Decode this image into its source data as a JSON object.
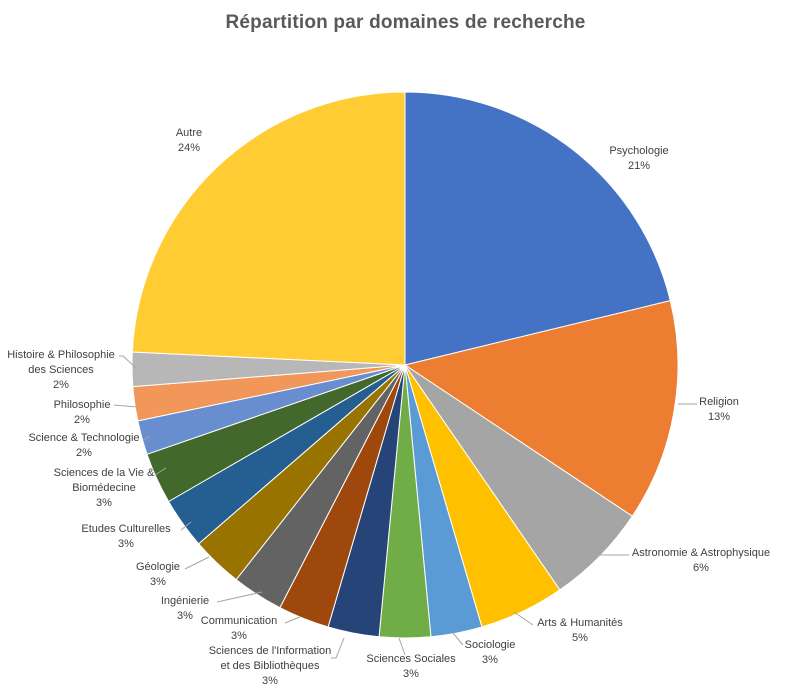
{
  "chart_data": {
    "type": "pie",
    "title": "Répartition  par domaines  de recherche",
    "slices": [
      {
        "name": "Psychologie",
        "label_lines": [
          "Psychologie"
        ],
        "percent": 21,
        "percent_label": "21%",
        "color": "#4472C4"
      },
      {
        "name": "Religion",
        "label_lines": [
          "Religion"
        ],
        "percent": 13,
        "percent_label": "13%",
        "color": "#ED7D31"
      },
      {
        "name": "Astronomie & Astrophysique",
        "label_lines": [
          "Astronomie & Astrophysique"
        ],
        "percent": 6,
        "percent_label": "6%",
        "color": "#A5A5A5"
      },
      {
        "name": "Arts & Humanités",
        "label_lines": [
          "Arts & Humanités"
        ],
        "percent": 5,
        "percent_label": "5%",
        "color": "#FFC000"
      },
      {
        "name": "Sociologie",
        "label_lines": [
          "Sociologie"
        ],
        "percent": 3,
        "percent_label": "3%",
        "color": "#5B9BD5"
      },
      {
        "name": "Sciences Sociales",
        "label_lines": [
          "Sciences Sociales"
        ],
        "percent": 3,
        "percent_label": "3%",
        "color": "#70AD47"
      },
      {
        "name": "Sciences de l'Information et des Bibliothèques",
        "label_lines": [
          "Sciences de l'Information",
          "et des Bibliothèques"
        ],
        "percent": 3,
        "percent_label": "3%",
        "color": "#264478"
      },
      {
        "name": "Communication",
        "label_lines": [
          "Communication"
        ],
        "percent": 3,
        "percent_label": "3%",
        "color": "#9E480E"
      },
      {
        "name": "Ingénierie",
        "label_lines": [
          "Ingénierie"
        ],
        "percent": 3,
        "percent_label": "3%",
        "color": "#636363"
      },
      {
        "name": "Géologie",
        "label_lines": [
          "Géologie"
        ],
        "percent": 3,
        "percent_label": "3%",
        "color": "#997300"
      },
      {
        "name": "Etudes Culturelles",
        "label_lines": [
          "Etudes Culturelles"
        ],
        "percent": 3,
        "percent_label": "3%",
        "color": "#255E91"
      },
      {
        "name": "Sciences de la Vie & Biomédecine",
        "label_lines": [
          "Sciences de la Vie &",
          "Biomédecine"
        ],
        "percent": 3,
        "percent_label": "3%",
        "color": "#43682B"
      },
      {
        "name": "Science & Technologie",
        "label_lines": [
          "Science & Technologie"
        ],
        "percent": 2,
        "percent_label": "2%",
        "color": "#698ED0"
      },
      {
        "name": "Philosophie",
        "label_lines": [
          "Philosophie"
        ],
        "percent": 2,
        "percent_label": "2%",
        "color": "#F1975A"
      },
      {
        "name": "Histoire & Philosophie des Sciences",
        "label_lines": [
          "Histoire & Philosophie",
          "des Sciences"
        ],
        "percent": 2,
        "percent_label": "2%",
        "color": "#B7B7B7"
      },
      {
        "name": "Autre",
        "label_lines": [
          "Autre"
        ],
        "percent": 24,
        "percent_label": "24%",
        "color": "#FFCD33"
      }
    ]
  }
}
